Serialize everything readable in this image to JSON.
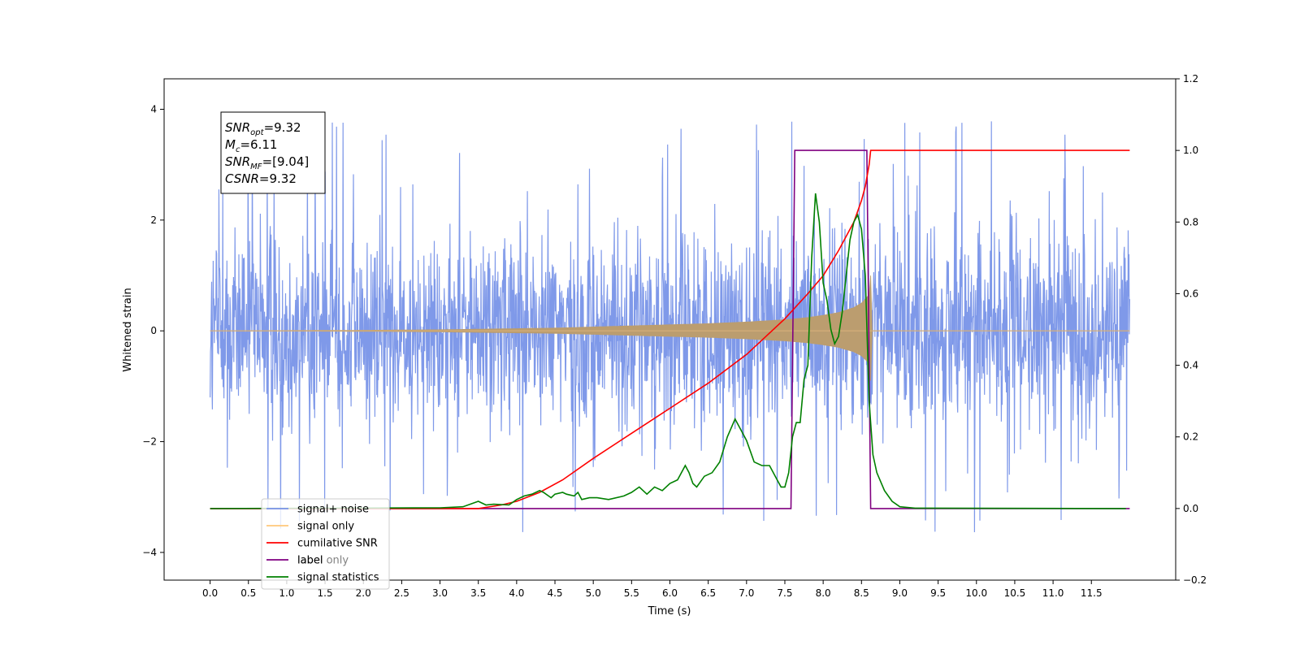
{
  "chart_data": {
    "type": "line",
    "xlabel": "Time (s)",
    "ylabel": "Whitened strain",
    "xlim": [
      -0.6,
      12.6
    ],
    "ylim": [
      -4.5,
      4.55
    ],
    "y2lim": [
      -0.2,
      1.2
    ],
    "x_ticks": [
      "0.0",
      "0.5",
      "1.0",
      "1.5",
      "2.0",
      "2.5",
      "3.0",
      "3.5",
      "4.0",
      "4.5",
      "5.0",
      "5.5",
      "6.0",
      "6.5",
      "7.0",
      "7.5",
      "8.0",
      "8.5",
      "9.0",
      "9.5",
      "10.0",
      "10.5",
      "11.0",
      "11.5"
    ],
    "y_ticks": [
      "−4",
      "−2",
      "0",
      "2",
      "4"
    ],
    "y2_ticks": [
      "−0.2",
      "0.0",
      "0.2",
      "0.4",
      "0.6",
      "0.8",
      "1.0",
      "1.2"
    ],
    "grid": false,
    "legend_position": "lower-left",
    "annotation": {
      "lines": [
        {
          "sym": "SNR",
          "sub": "opt",
          "rest": "=9.32"
        },
        {
          "sym": "M",
          "sub": "c",
          "rest": "=6.11"
        },
        {
          "sym": "SNR",
          "sub": "MF",
          "rest": "=[9.04]"
        },
        {
          "sym": "CSNR",
          "sub": "",
          "rest": "=9.32"
        }
      ]
    },
    "series": [
      {
        "name": "signal+ noise",
        "axis": "left",
        "color": "#7893e8",
        "style": "noise band",
        "x_range": [
          0.0,
          12.0
        ],
        "envelope": 2.4,
        "spike_max": 4.1,
        "spike_min": -4.1
      },
      {
        "name": "signal only",
        "axis": "left",
        "color": "#bb9d6f",
        "style": "chirp",
        "x": [
          0.0,
          1.0,
          2.0,
          3.0,
          4.0,
          4.5,
          5.0,
          5.5,
          6.0,
          6.5,
          7.0,
          7.5,
          7.8,
          8.0,
          8.2,
          8.4,
          8.5,
          8.6,
          8.62,
          8.64,
          12.0
        ],
        "amplitude": [
          0.0,
          0.005,
          0.01,
          0.02,
          0.04,
          0.05,
          0.07,
          0.09,
          0.11,
          0.13,
          0.16,
          0.2,
          0.24,
          0.28,
          0.33,
          0.42,
          0.5,
          0.65,
          1.0,
          0.0,
          0.0
        ]
      },
      {
        "name": "cumilative SNR",
        "axis": "right",
        "color": "#ff0000",
        "x": [
          0.0,
          3.5,
          3.8,
          4.0,
          4.3,
          4.6,
          5.0,
          5.5,
          6.0,
          6.5,
          7.0,
          7.5,
          7.8,
          8.0,
          8.2,
          8.4,
          8.5,
          8.55,
          8.6,
          8.62,
          12.0
        ],
        "values": [
          0.0,
          0.0,
          0.01,
          0.02,
          0.045,
          0.08,
          0.14,
          0.21,
          0.28,
          0.35,
          0.43,
          0.53,
          0.6,
          0.65,
          0.72,
          0.8,
          0.86,
          0.9,
          0.96,
          1.0,
          1.0
        ]
      },
      {
        "name": "label",
        "axis": "right",
        "color": "#800080",
        "x": [
          0.0,
          7.58,
          7.63,
          8.57,
          8.62,
          12.0
        ],
        "values": [
          0.0,
          0.0,
          1.0,
          1.0,
          0.0,
          0.0
        ]
      },
      {
        "name": "signal statistics",
        "axis": "right",
        "color": "#008000",
        "x": [
          0.0,
          3.0,
          3.3,
          3.5,
          3.6,
          3.7,
          3.9,
          4.0,
          4.1,
          4.2,
          4.3,
          4.35,
          4.45,
          4.5,
          4.6,
          4.65,
          4.75,
          4.8,
          4.85,
          4.95,
          5.05,
          5.2,
          5.4,
          5.5,
          5.6,
          5.7,
          5.75,
          5.8,
          5.9,
          6.0,
          6.1,
          6.2,
          6.25,
          6.3,
          6.35,
          6.4,
          6.45,
          6.55,
          6.65,
          6.75,
          6.85,
          6.95,
          7.0,
          7.05,
          7.1,
          7.2,
          7.3,
          7.4,
          7.45,
          7.5,
          7.55,
          7.6,
          7.65,
          7.7,
          7.75,
          7.8,
          7.85,
          7.9,
          7.95,
          8.0,
          8.05,
          8.1,
          8.15,
          8.2,
          8.25,
          8.3,
          8.35,
          8.4,
          8.45,
          8.5,
          8.55,
          8.6,
          8.65,
          8.7,
          8.8,
          8.9,
          9.0,
          9.2,
          11.95
        ],
        "values": [
          0.0,
          0.002,
          0.005,
          0.02,
          0.01,
          0.012,
          0.01,
          0.025,
          0.035,
          0.04,
          0.05,
          0.045,
          0.03,
          0.04,
          0.045,
          0.04,
          0.035,
          0.045,
          0.025,
          0.03,
          0.03,
          0.025,
          0.035,
          0.045,
          0.06,
          0.04,
          0.05,
          0.06,
          0.05,
          0.07,
          0.08,
          0.12,
          0.1,
          0.07,
          0.06,
          0.075,
          0.09,
          0.1,
          0.13,
          0.2,
          0.25,
          0.21,
          0.19,
          0.16,
          0.13,
          0.12,
          0.12,
          0.08,
          0.06,
          0.06,
          0.1,
          0.2,
          0.24,
          0.24,
          0.36,
          0.4,
          0.7,
          0.88,
          0.8,
          0.63,
          0.58,
          0.5,
          0.46,
          0.48,
          0.55,
          0.65,
          0.75,
          0.8,
          0.82,
          0.78,
          0.65,
          0.3,
          0.15,
          0.1,
          0.05,
          0.02,
          0.005,
          0.001,
          0.0
        ]
      },
      {
        "name": "label only",
        "axis": "right",
        "color": "#d9d9d9",
        "legend_only": true
      }
    ],
    "legend": [
      {
        "label": "signal+ noise",
        "color": "#7893e8",
        "opacity": 1
      },
      {
        "label": "signal only",
        "color": "#ffc87a",
        "opacity": 1
      },
      {
        "label": "cumilative SNR",
        "color": "#ff0000",
        "opacity": 1
      },
      {
        "label": "label only",
        "color": "#e6d6ef",
        "opacity": 0.5
      },
      {
        "label": "label",
        "color": "#800080",
        "opacity": 1
      },
      {
        "label": "signal statistics",
        "color": "#008000",
        "opacity": 1
      }
    ]
  }
}
